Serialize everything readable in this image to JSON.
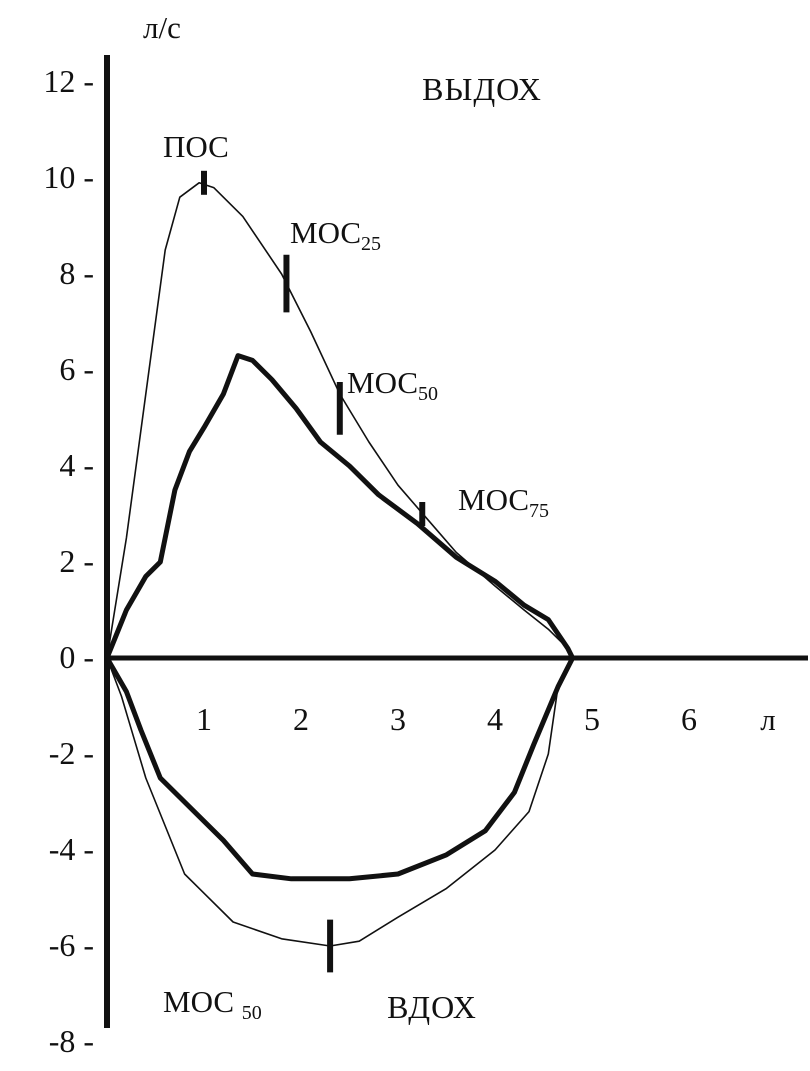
{
  "chart_data": {
    "type": "line",
    "title": "",
    "xlabel": "л",
    "ylabel": "л/с",
    "xlim": [
      0,
      7
    ],
    "ylim": [
      -8,
      12.5
    ],
    "x_ticks": [
      1,
      2,
      3,
      4,
      5,
      6
    ],
    "y_ticks": [
      12,
      10,
      8,
      6,
      4,
      2,
      0,
      -2,
      -4,
      -6,
      -8
    ],
    "grid": false,
    "region_labels": {
      "expiration": "ВЫДОХ",
      "inspiration": "ВДОХ"
    },
    "series": [
      {
        "style": "thin",
        "points": [
          [
            0,
            0
          ],
          [
            0.2,
            2.5
          ],
          [
            0.4,
            5.5
          ],
          [
            0.6,
            8.5
          ],
          [
            0.75,
            9.6
          ],
          [
            0.95,
            9.9
          ],
          [
            1.1,
            9.8
          ],
          [
            1.4,
            9.2
          ],
          [
            1.8,
            8.0
          ],
          [
            2.1,
            6.8
          ],
          [
            2.4,
            5.5
          ],
          [
            2.7,
            4.5
          ],
          [
            3.0,
            3.6
          ],
          [
            3.3,
            2.9
          ],
          [
            3.6,
            2.2
          ],
          [
            4.0,
            1.5
          ],
          [
            4.3,
            1.0
          ],
          [
            4.55,
            0.6
          ],
          [
            4.7,
            0.3
          ],
          [
            4.8,
            0
          ],
          [
            4.65,
            -0.6
          ],
          [
            4.55,
            -2.0
          ],
          [
            4.35,
            -3.2
          ],
          [
            4.0,
            -4.0
          ],
          [
            3.5,
            -4.8
          ],
          [
            3.0,
            -5.4
          ],
          [
            2.6,
            -5.9
          ],
          [
            2.3,
            -6.0
          ],
          [
            1.8,
            -5.85
          ],
          [
            1.3,
            -5.5
          ],
          [
            0.8,
            -4.5
          ],
          [
            0.4,
            -2.5
          ],
          [
            0.15,
            -0.8
          ],
          [
            0,
            0
          ]
        ]
      },
      {
        "style": "thick",
        "points": [
          [
            0,
            0
          ],
          [
            0.2,
            1.0
          ],
          [
            0.4,
            1.7
          ],
          [
            0.55,
            2.0
          ],
          [
            0.7,
            3.5
          ],
          [
            0.85,
            4.3
          ],
          [
            1.0,
            4.8
          ],
          [
            1.2,
            5.5
          ],
          [
            1.35,
            6.3
          ],
          [
            1.5,
            6.2
          ],
          [
            1.7,
            5.8
          ],
          [
            1.95,
            5.2
          ],
          [
            2.2,
            4.5
          ],
          [
            2.5,
            4.0
          ],
          [
            2.8,
            3.4
          ],
          [
            3.2,
            2.8
          ],
          [
            3.6,
            2.1
          ],
          [
            4.0,
            1.6
          ],
          [
            4.3,
            1.1
          ],
          [
            4.55,
            0.8
          ],
          [
            4.75,
            0.2
          ],
          [
            4.8,
            0
          ],
          [
            4.65,
            -0.6
          ],
          [
            4.4,
            -1.8
          ],
          [
            4.2,
            -2.8
          ],
          [
            3.9,
            -3.6
          ],
          [
            3.5,
            -4.1
          ],
          [
            3.0,
            -4.5
          ],
          [
            2.5,
            -4.6
          ],
          [
            1.9,
            -4.6
          ],
          [
            1.5,
            -4.5
          ],
          [
            1.2,
            -3.8
          ],
          [
            0.9,
            -3.2
          ],
          [
            0.55,
            -2.5
          ],
          [
            0.35,
            -1.5
          ],
          [
            0.2,
            -0.7
          ],
          [
            0,
            0
          ]
        ]
      }
    ],
    "markers": [
      {
        "label": "ПОС",
        "sub": "",
        "x": 1.0,
        "y": 9.9,
        "half": 0.25
      },
      {
        "label": "МОС",
        "sub": "25",
        "x": 1.85,
        "y": 7.8,
        "half": 0.6
      },
      {
        "label": "МОС",
        "sub": "50",
        "x": 2.4,
        "y": 5.2,
        "half": 0.55
      },
      {
        "label": "МОС",
        "sub": "75",
        "x": 3.25,
        "y": 3.0,
        "half": 0.25
      },
      {
        "label": "МОС ",
        "sub": "50",
        "x": 2.3,
        "y": -6.0,
        "half": 0.55
      }
    ]
  }
}
